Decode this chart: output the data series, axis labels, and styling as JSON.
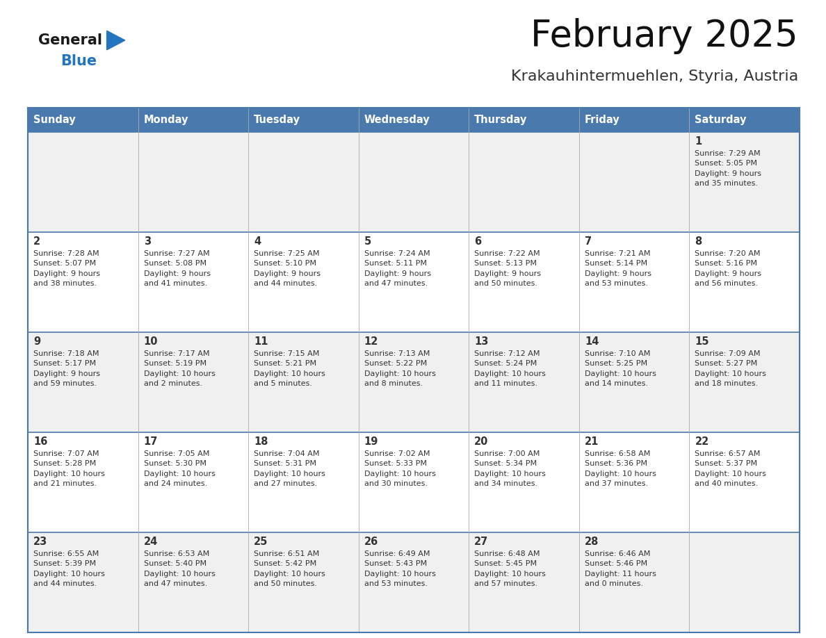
{
  "title": "February 2025",
  "subtitle": "Krakauhintermuehlen, Styria, Austria",
  "header_bg": "#4a7aad",
  "header_text": "#ffffff",
  "row_bg_odd": "#f0f0f0",
  "row_bg_even": "#ffffff",
  "border_color": "#4a7aad",
  "divider_color": "#aaaaaa",
  "text_color": "#333333",
  "days_of_week": [
    "Sunday",
    "Monday",
    "Tuesday",
    "Wednesday",
    "Thursday",
    "Friday",
    "Saturday"
  ],
  "calendar_data": [
    [
      {
        "day": "",
        "info": ""
      },
      {
        "day": "",
        "info": ""
      },
      {
        "day": "",
        "info": ""
      },
      {
        "day": "",
        "info": ""
      },
      {
        "day": "",
        "info": ""
      },
      {
        "day": "",
        "info": ""
      },
      {
        "day": "1",
        "info": "Sunrise: 7:29 AM\nSunset: 5:05 PM\nDaylight: 9 hours\nand 35 minutes."
      }
    ],
    [
      {
        "day": "2",
        "info": "Sunrise: 7:28 AM\nSunset: 5:07 PM\nDaylight: 9 hours\nand 38 minutes."
      },
      {
        "day": "3",
        "info": "Sunrise: 7:27 AM\nSunset: 5:08 PM\nDaylight: 9 hours\nand 41 minutes."
      },
      {
        "day": "4",
        "info": "Sunrise: 7:25 AM\nSunset: 5:10 PM\nDaylight: 9 hours\nand 44 minutes."
      },
      {
        "day": "5",
        "info": "Sunrise: 7:24 AM\nSunset: 5:11 PM\nDaylight: 9 hours\nand 47 minutes."
      },
      {
        "day": "6",
        "info": "Sunrise: 7:22 AM\nSunset: 5:13 PM\nDaylight: 9 hours\nand 50 minutes."
      },
      {
        "day": "7",
        "info": "Sunrise: 7:21 AM\nSunset: 5:14 PM\nDaylight: 9 hours\nand 53 minutes."
      },
      {
        "day": "8",
        "info": "Sunrise: 7:20 AM\nSunset: 5:16 PM\nDaylight: 9 hours\nand 56 minutes."
      }
    ],
    [
      {
        "day": "9",
        "info": "Sunrise: 7:18 AM\nSunset: 5:17 PM\nDaylight: 9 hours\nand 59 minutes."
      },
      {
        "day": "10",
        "info": "Sunrise: 7:17 AM\nSunset: 5:19 PM\nDaylight: 10 hours\nand 2 minutes."
      },
      {
        "day": "11",
        "info": "Sunrise: 7:15 AM\nSunset: 5:21 PM\nDaylight: 10 hours\nand 5 minutes."
      },
      {
        "day": "12",
        "info": "Sunrise: 7:13 AM\nSunset: 5:22 PM\nDaylight: 10 hours\nand 8 minutes."
      },
      {
        "day": "13",
        "info": "Sunrise: 7:12 AM\nSunset: 5:24 PM\nDaylight: 10 hours\nand 11 minutes."
      },
      {
        "day": "14",
        "info": "Sunrise: 7:10 AM\nSunset: 5:25 PM\nDaylight: 10 hours\nand 14 minutes."
      },
      {
        "day": "15",
        "info": "Sunrise: 7:09 AM\nSunset: 5:27 PM\nDaylight: 10 hours\nand 18 minutes."
      }
    ],
    [
      {
        "day": "16",
        "info": "Sunrise: 7:07 AM\nSunset: 5:28 PM\nDaylight: 10 hours\nand 21 minutes."
      },
      {
        "day": "17",
        "info": "Sunrise: 7:05 AM\nSunset: 5:30 PM\nDaylight: 10 hours\nand 24 minutes."
      },
      {
        "day": "18",
        "info": "Sunrise: 7:04 AM\nSunset: 5:31 PM\nDaylight: 10 hours\nand 27 minutes."
      },
      {
        "day": "19",
        "info": "Sunrise: 7:02 AM\nSunset: 5:33 PM\nDaylight: 10 hours\nand 30 minutes."
      },
      {
        "day": "20",
        "info": "Sunrise: 7:00 AM\nSunset: 5:34 PM\nDaylight: 10 hours\nand 34 minutes."
      },
      {
        "day": "21",
        "info": "Sunrise: 6:58 AM\nSunset: 5:36 PM\nDaylight: 10 hours\nand 37 minutes."
      },
      {
        "day": "22",
        "info": "Sunrise: 6:57 AM\nSunset: 5:37 PM\nDaylight: 10 hours\nand 40 minutes."
      }
    ],
    [
      {
        "day": "23",
        "info": "Sunrise: 6:55 AM\nSunset: 5:39 PM\nDaylight: 10 hours\nand 44 minutes."
      },
      {
        "day": "24",
        "info": "Sunrise: 6:53 AM\nSunset: 5:40 PM\nDaylight: 10 hours\nand 47 minutes."
      },
      {
        "day": "25",
        "info": "Sunrise: 6:51 AM\nSunset: 5:42 PM\nDaylight: 10 hours\nand 50 minutes."
      },
      {
        "day": "26",
        "info": "Sunrise: 6:49 AM\nSunset: 5:43 PM\nDaylight: 10 hours\nand 53 minutes."
      },
      {
        "day": "27",
        "info": "Sunrise: 6:48 AM\nSunset: 5:45 PM\nDaylight: 10 hours\nand 57 minutes."
      },
      {
        "day": "28",
        "info": "Sunrise: 6:46 AM\nSunset: 5:46 PM\nDaylight: 11 hours\nand 0 minutes."
      },
      {
        "day": "",
        "info": ""
      }
    ]
  ],
  "logo_color_general": "#1a1a1a",
  "logo_color_blue": "#2275be",
  "logo_triangle_color": "#2275be",
  "fig_width": 11.88,
  "fig_height": 9.18,
  "dpi": 100
}
